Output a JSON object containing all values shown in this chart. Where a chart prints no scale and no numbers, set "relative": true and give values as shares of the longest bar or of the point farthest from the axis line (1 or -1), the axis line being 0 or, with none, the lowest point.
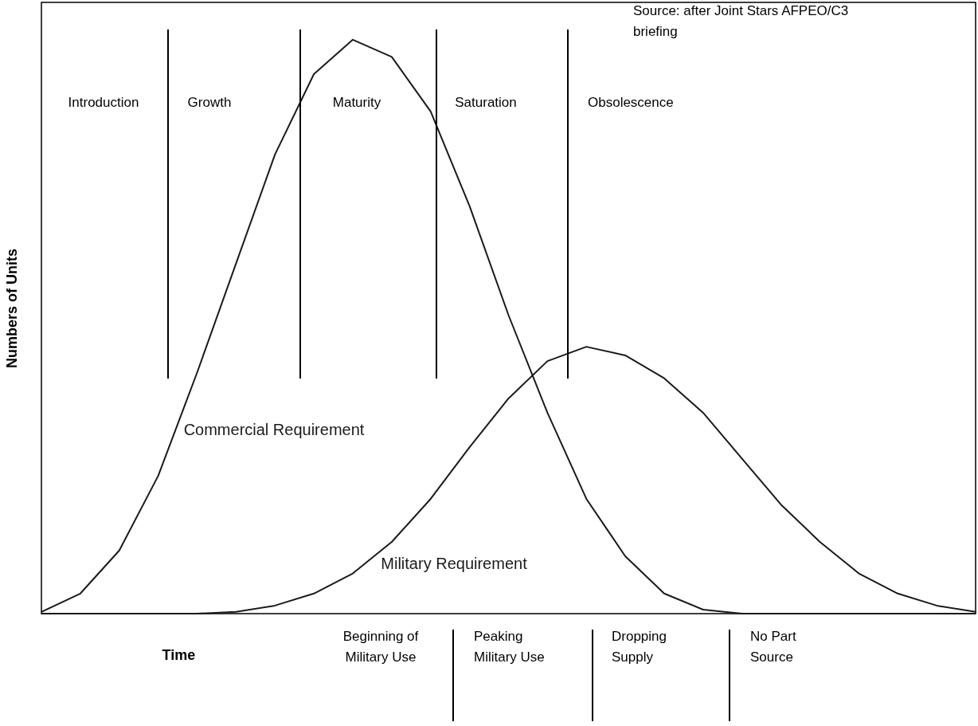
{
  "chart_data": {
    "type": "line",
    "relative": true,
    "tick_labels": false,
    "xlabel": "Time",
    "ylabel": "Numbers of Units",
    "categories": [
      null,
      null,
      null,
      null,
      null,
      null,
      null,
      null,
      null,
      null,
      null,
      null,
      null,
      null,
      null,
      null,
      null,
      null,
      null,
      null,
      null,
      null,
      null,
      null,
      null
    ],
    "series": [
      {
        "name": "Commercial Requirement",
        "color": "#1a1a1a",
        "values": [
          0.003,
          0.035,
          0.11,
          0.24,
          0.42,
          0.61,
          0.8,
          0.94,
          1,
          0.97,
          0.875,
          0.71,
          0.52,
          0.35,
          0.2,
          0.1,
          0.035,
          0.007,
          0,
          0,
          0,
          0,
          0,
          0,
          0
        ]
      },
      {
        "name": "Military Requirement",
        "color": "#1a1a1a",
        "values": [
          0,
          0,
          0,
          0,
          0,
          0.003,
          0.014,
          0.035,
          0.07,
          0.125,
          0.2,
          0.29,
          0.375,
          0.44,
          0.465,
          0.45,
          0.41,
          0.35,
          0.27,
          0.19,
          0.125,
          0.07,
          0.035,
          0.014,
          0.003
        ]
      }
    ],
    "annotations": [
      "Source: after Joint Stars AFPEO/C3\nbriefing",
      "Introduction",
      "Growth",
      "Maturity",
      "Saturation",
      "Obsolescence",
      "Beginning of\nMilitary Use",
      "Peaking\nMilitary Use",
      "Dropping\nSupply",
      "No Part\nSource"
    ]
  }
}
